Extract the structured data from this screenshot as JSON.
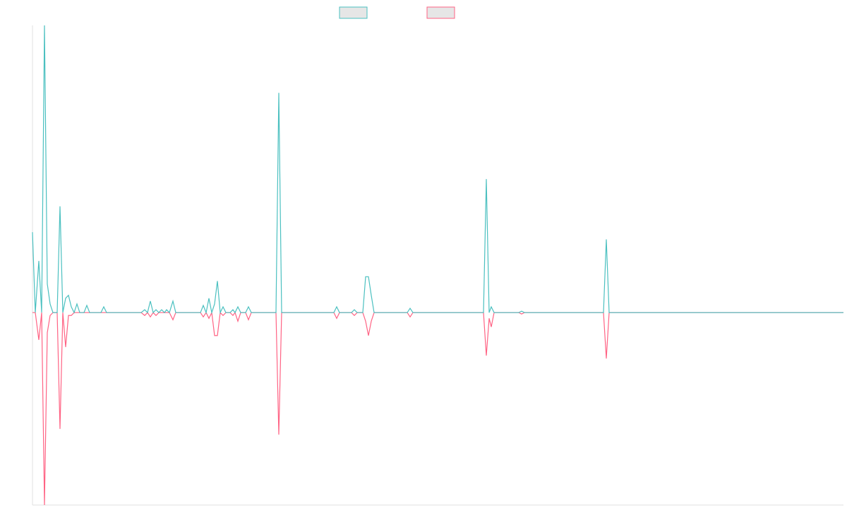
{
  "chart_data": {
    "type": "line",
    "x": [
      0,
      4,
      9,
      13,
      17,
      21,
      25,
      29,
      35,
      39,
      43,
      47,
      51,
      55,
      59,
      63,
      67,
      73,
      77,
      81,
      97,
      101,
      105,
      154,
      159,
      163,
      167,
      171,
      175,
      179,
      183,
      187,
      190,
      194,
      199,
      203,
      238,
      242,
      246,
      250,
      254,
      258,
      262,
      266,
      270,
      274,
      280,
      284,
      287,
      291,
      295,
      302,
      306,
      310,
      345,
      349,
      353,
      427,
      431,
      435,
      452,
      456,
      460,
      468,
      472,
      476,
      480,
      484,
      531,
      535,
      539,
      639,
      643,
      647,
      650,
      654,
      689,
      693,
      697,
      809,
      813,
      817,
      1149
    ],
    "series": [
      {
        "color": "#4bc0c0",
        "values": [
          28,
          0,
          18,
          0,
          100,
          10,
          3,
          0,
          0,
          37,
          0,
          5,
          6,
          2,
          0,
          3,
          0,
          0,
          2.5,
          0,
          0,
          2,
          0,
          0,
          1,
          0,
          4,
          0,
          1,
          0,
          1,
          0,
          1,
          0,
          4,
          0,
          0,
          2.5,
          0,
          5,
          0,
          3,
          11,
          0,
          2,
          0,
          0,
          1,
          0,
          2,
          0,
          0,
          2,
          0,
          0,
          76.5,
          0,
          0,
          2,
          0,
          0,
          1,
          0,
          0,
          12.5,
          12.5,
          6,
          0,
          0,
          1.5,
          0,
          0,
          46.5,
          0,
          2,
          0,
          0,
          0.5,
          0,
          0,
          25.5,
          0,
          0
        ]
      },
      {
        "color": "#ff6384",
        "values": [
          0,
          0,
          -9.5,
          0,
          -67,
          -7,
          -1,
          0,
          0,
          -40.5,
          0,
          -12,
          -1,
          -1,
          0,
          0,
          0,
          0,
          0,
          0,
          0,
          0,
          0,
          0,
          -1,
          0,
          -1.5,
          0,
          -1,
          0,
          0,
          0,
          0,
          0,
          -2.5,
          0,
          0,
          -1.5,
          0,
          -2,
          0,
          -8,
          -8,
          0,
          -1,
          0,
          0,
          -1,
          0,
          -3,
          0,
          0,
          -2.5,
          0,
          0,
          -42.5,
          0,
          0,
          -2,
          0,
          0,
          -1,
          0,
          0,
          -3,
          -8,
          -3,
          0,
          0,
          -1.5,
          0,
          0,
          -15,
          -2,
          -5,
          0,
          0,
          -0.5,
          0,
          0,
          -16,
          0,
          0
        ]
      }
    ],
    "xlim": [
      0,
      1149
    ],
    "ylim": [
      -67,
      100
    ],
    "grid": false
  }
}
